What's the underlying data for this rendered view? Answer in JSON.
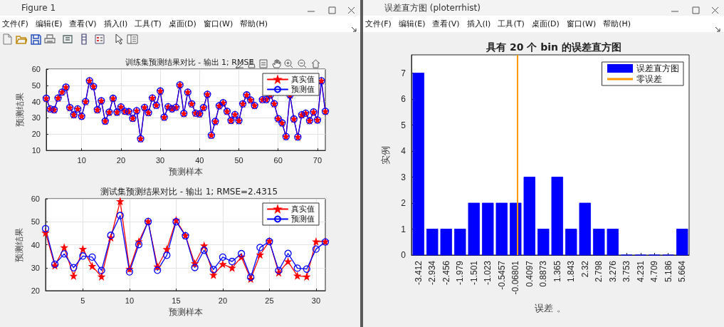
{
  "chart_data": [
    {
      "type": "other",
      "title": "Figure 1",
      "annotations": [
        "文件(F)",
        "编辑(E)",
        "查看(V)",
        "插入(I)",
        "工具(T)",
        "桌面(D)",
        "窗口(W)",
        "帮助(H)"
      ]
    },
    {
      "type": "line",
      "title": "训练集预测结果对比 - 输出 1; RMSE",
      "xlabel": "预测样本",
      "ylabel": "预测结果",
      "x": [
        1,
        2,
        3,
        4,
        5,
        6,
        7,
        8,
        9,
        10,
        11,
        12,
        13,
        14,
        15,
        16,
        17,
        18,
        19,
        20,
        21,
        22,
        23,
        24,
        25,
        26,
        27,
        28,
        29,
        30,
        31,
        32,
        33,
        34,
        35,
        36,
        37,
        38,
        39,
        40,
        41,
        42,
        43,
        44,
        45,
        46,
        47,
        48,
        49,
        50,
        51,
        52,
        53,
        54,
        55,
        56,
        57,
        58,
        59,
        60,
        61,
        62,
        63,
        64,
        65,
        66,
        67,
        68,
        69,
        70,
        71,
        72
      ],
      "series": [
        {
          "name": "真实值",
          "color": "#ff0000",
          "marker": "star",
          "values": [
            42.0,
            35.5,
            35.0,
            42.2,
            45.8,
            48.9,
            36.3,
            31.9,
            35.5,
            31.0,
            40.0,
            52.8,
            49.3,
            35.0,
            40.5,
            28.0,
            33.5,
            42.0,
            33.5,
            36.7,
            34.1,
            33.8,
            29.7,
            34.4,
            17.2,
            36.4,
            33.2,
            42.2,
            37.7,
            46.5,
            30.4,
            36.8,
            35.6,
            36.5,
            50.3,
            32.7,
            45.8,
            38.6,
            32.9,
            32.5,
            36.3,
            44.5,
            19.3,
            27.8,
            37.4,
            39.3,
            34.0,
            28.4,
            32.0,
            28.3,
            38.6,
            44.1,
            41.0,
            37.6,
            null,
            41.2,
            41.3,
            44.1,
            38.7,
            29.5,
            26.9,
            18.5,
            44.1,
            29.3,
            18.2,
            31.9,
            32.9,
            28.3,
            33.6,
            28.7,
            52.8,
            34.0
          ]
        },
        {
          "name": "预测值",
          "color": "#0000ff",
          "marker": "circle",
          "values": [
            42.0,
            35.5,
            35.0,
            42.2,
            45.8,
            48.9,
            36.3,
            31.9,
            35.5,
            31.0,
            40.0,
            52.8,
            49.3,
            35.0,
            40.5,
            28.0,
            33.5,
            42.0,
            33.5,
            36.7,
            34.1,
            33.8,
            29.7,
            34.4,
            17.2,
            36.4,
            33.2,
            42.2,
            37.7,
            46.5,
            30.4,
            36.8,
            35.6,
            36.5,
            50.3,
            32.7,
            45.8,
            38.6,
            32.9,
            32.5,
            36.3,
            44.5,
            19.3,
            27.8,
            37.4,
            39.3,
            34.0,
            28.4,
            32.0,
            28.3,
            38.6,
            44.1,
            41.0,
            37.6,
            null,
            41.2,
            41.3,
            44.1,
            38.7,
            29.5,
            26.9,
            18.5,
            44.1,
            29.3,
            18.2,
            31.9,
            32.9,
            28.3,
            33.6,
            28.7,
            52.8,
            34.0
          ]
        }
      ],
      "xlim": [
        1,
        72
      ],
      "xticks": [
        10,
        20,
        30,
        40,
        50,
        60,
        70
      ],
      "ylim": [
        10,
        60
      ],
      "yticks": [
        10,
        20,
        30,
        40,
        50,
        60
      ],
      "grid": true,
      "legend": "top right",
      "line_style": "solid"
    },
    {
      "type": "line",
      "title": "测试集预测结果对比 - 输出 1; RMSE=2.4315",
      "xlabel": "预测样本",
      "ylabel": "预测结果",
      "x": [
        1,
        2,
        3,
        4,
        5,
        6,
        7,
        8,
        9,
        10,
        11,
        12,
        13,
        14,
        15,
        16,
        17,
        18,
        19,
        20,
        21,
        22,
        23,
        24,
        25,
        26,
        27,
        28,
        29,
        30,
        31
      ],
      "series": [
        {
          "name": "真实值",
          "color": "#ff0000",
          "marker": "star",
          "values": [
            45.2,
            30.9,
            38.8,
            26.4,
            38.1,
            30.7,
            26.1,
            43.1,
            58.9,
            29.4,
            41.4,
            50.1,
            30.4,
            38.0,
            50.7,
            44.0,
            31.8,
            39.6,
            26.8,
            31.5,
            29.9,
            34.6,
            25.1,
            35.6,
            41.6,
            27.8,
            32.7,
            26.5,
            26.1,
            41.4,
            41.4
          ]
        },
        {
          "name": "预测值",
          "color": "#0000ff",
          "marker": "circle",
          "values": [
            47.0,
            31.5,
            36.0,
            30.0,
            35.1,
            34.6,
            28.8,
            44.1,
            52.7,
            28.2,
            40.1,
            50.1,
            28.9,
            35.4,
            50.0,
            43.9,
            30.1,
            37.6,
            29.2,
            34.6,
            32.7,
            36.1,
            25.9,
            38.8,
            41.4,
            28.8,
            36.2,
            29.8,
            29.4,
            38.1,
            41.2
          ]
        }
      ],
      "xlim": [
        1,
        31
      ],
      "xticks": [
        5,
        10,
        15,
        20,
        25,
        30
      ],
      "ylim": [
        20,
        60
      ],
      "yticks": [
        20,
        30,
        40,
        50,
        60
      ],
      "grid": true,
      "legend": "top right",
      "line_style": "solid"
    },
    {
      "type": "other",
      "title": "误差直方图 (ploterrhist)",
      "annotations": [
        "文件(F)",
        "编辑(E)",
        "查看(V)",
        "插入(I)",
        "工具(T)",
        "桌面(D)",
        "窗口(W)",
        "帮助(H)"
      ]
    },
    {
      "type": "histogram",
      "title": "具有 20 个 bin 的误差直方图",
      "xlabel": "误差 。",
      "ylabel": "实例",
      "bins": [
        -3.6508,
        -3.1732,
        -2.6955,
        -2.2178,
        -1.7401,
        -1.2625,
        -0.7848,
        -0.3071,
        0.1706,
        0.6482,
        1.1259,
        1.6036,
        2.0813,
        2.559,
        3.0366,
        3.5143,
        3.992,
        4.4697,
        4.9473,
        5.425,
        5.9027
      ],
      "series": [
        {
          "name": "误差直方图",
          "color": "#0000ff",
          "values": [
            7,
            1,
            1,
            1,
            2,
            2,
            2,
            2,
            3,
            1,
            3,
            1,
            2,
            1,
            1,
            0,
            0,
            0,
            0,
            1
          ]
        },
        {
          "type": "line",
          "name": "零误差",
          "color": "#ff9900",
          "x": [
            0,
            0
          ],
          "values": [
            0,
            7.7
          ]
        }
      ],
      "xlim": [
        -3.6508,
        5.9027
      ],
      "xticks": [
        -3.412,
        -2.934,
        -2.456,
        -1.979,
        -1.501,
        -1.023,
        -0.5457,
        -0.06801,
        0.4097,
        0.8873,
        1.365,
        1.843,
        2.32,
        2.798,
        3.276,
        3.753,
        4.231,
        4.709,
        5.186,
        5.664
      ],
      "ylim": [
        0,
        7.7
      ],
      "yticks": [
        0,
        1,
        2,
        3,
        4,
        5,
        6,
        7
      ],
      "grid": false,
      "legend": "top right"
    }
  ]
}
